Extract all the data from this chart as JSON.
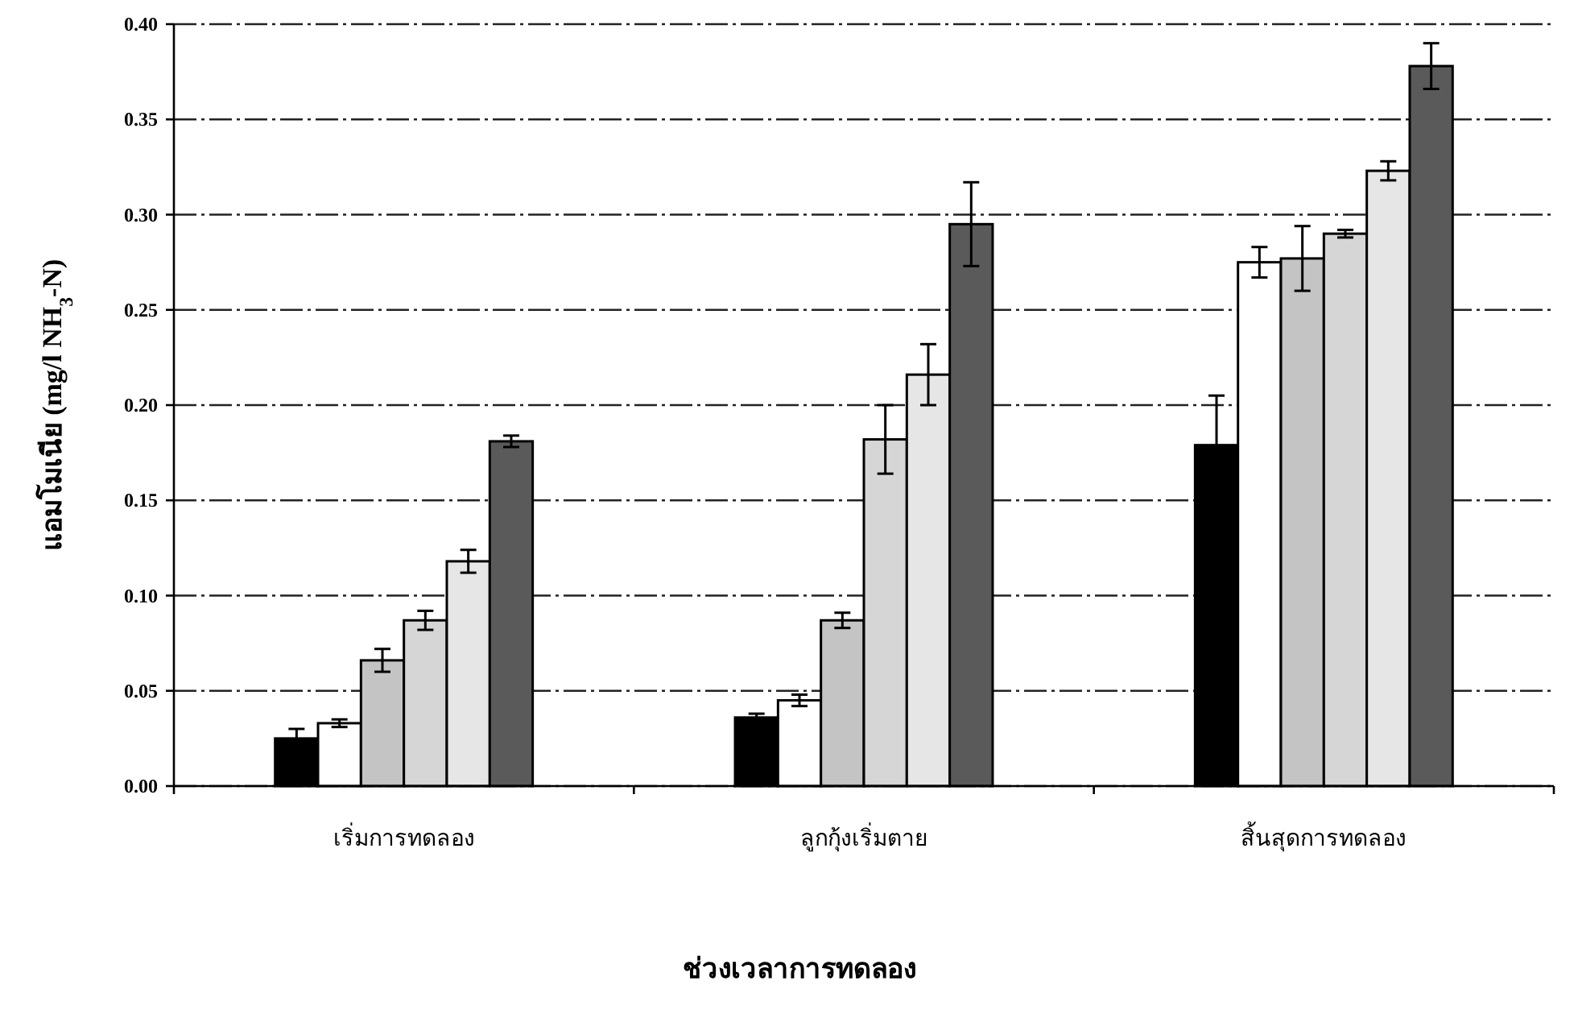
{
  "chart_data": {
    "type": "bar",
    "xlabel": "ช่วงเวลาการทดลอง",
    "ylabel": "แอมโมเนีย (mg/l NH$_{3}$-N)",
    "categories": [
      "เริ่มการทดลอง",
      "ลูกกุ้งเริ่มตาย",
      "สิ้นสุดการทดลอง"
    ],
    "series": [
      {
        "color": "#000000",
        "values": [
          0.025,
          0.036,
          0.179
        ],
        "errors": [
          0.005,
          0.002,
          0.026
        ]
      },
      {
        "color": "#ffffff",
        "values": [
          0.033,
          0.045,
          0.275
        ],
        "errors": [
          0.002,
          0.003,
          0.008
        ]
      },
      {
        "color": "#c4c4c4",
        "values": [
          0.066,
          0.087,
          0.277
        ],
        "errors": [
          0.006,
          0.004,
          0.017
        ]
      },
      {
        "color": "#d6d6d6",
        "values": [
          0.087,
          0.182,
          0.29
        ],
        "errors": [
          0.005,
          0.018,
          0.002
        ]
      },
      {
        "color": "#e6e6e6",
        "values": [
          0.118,
          0.216,
          0.323
        ],
        "errors": [
          0.006,
          0.016,
          0.005
        ]
      },
      {
        "color": "#5a5a5a",
        "values": [
          0.181,
          0.295,
          0.378
        ],
        "errors": [
          0.003,
          0.022,
          0.012
        ]
      }
    ],
    "ylim": [
      0,
      0.4
    ],
    "yticks": [
      {
        "value": 0,
        "label": "0.00"
      },
      {
        "value": 0.05,
        "label": "0.05"
      },
      {
        "value": 0.1,
        "label": "0.10"
      },
      {
        "value": 0.15,
        "label": "0.15"
      },
      {
        "value": 0.2,
        "label": "0.20"
      },
      {
        "value": 0.25,
        "label": "0.25"
      },
      {
        "value": 0.3,
        "label": "0.30"
      },
      {
        "value": 0.35,
        "label": "0.35"
      },
      {
        "value": 0.4,
        "label": "0.40"
      }
    ],
    "grid": "y"
  }
}
